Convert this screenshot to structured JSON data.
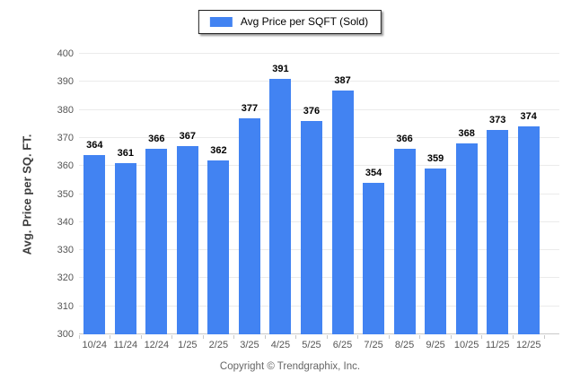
{
  "legend": {
    "label": "Avg Price per SQFT (Sold)"
  },
  "colors": {
    "bar": "#4283f2",
    "gridline": "#ebebeb",
    "axis_line": "#c9c9c9"
  },
  "y_axis": {
    "title": "Avg. Price per SQ. FT.",
    "min": 300,
    "max": 400,
    "step": 10,
    "tick_labels": [
      "300",
      "310",
      "320",
      "330",
      "340",
      "350",
      "360",
      "370",
      "380",
      "390",
      "400"
    ]
  },
  "footer": {
    "copyright": "Copyright © Trendgraphix, Inc."
  },
  "chart_data": {
    "type": "bar",
    "title": "",
    "categories": [
      "10/24",
      "11/24",
      "12/24",
      "1/25",
      "2/25",
      "3/25",
      "4/25",
      "5/25",
      "6/25",
      "7/25",
      "8/25",
      "9/25",
      "10/25",
      "11/25",
      "12/25"
    ],
    "values": [
      364,
      361,
      366,
      367,
      362,
      377,
      391,
      376,
      387,
      354,
      366,
      359,
      368,
      373,
      374
    ],
    "series_name": "Avg Price per SQFT (Sold)",
    "xlabel": "",
    "ylabel": "Avg. Price per SQ. FT.",
    "ylim": [
      300,
      400
    ],
    "grid": true,
    "legend_position": "top",
    "data_labels": true
  }
}
